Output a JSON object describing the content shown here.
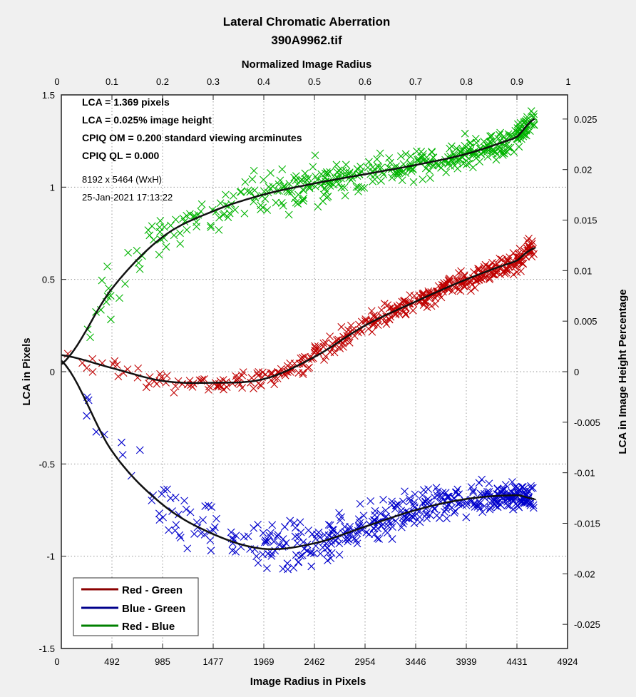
{
  "chart_data": {
    "type": "scatter",
    "title": "Lateral Chromatic Aberration",
    "subtitle": "390A9962.tif",
    "xlabel": "Image Radius in Pixels",
    "ylabel": "LCA in Pixels",
    "top_xlabel": "Normalized Image Radius",
    "right_ylabel": "LCA in Image Height Percentage",
    "xlim": [
      0,
      4924
    ],
    "ylim": [
      -1.5,
      1.5
    ],
    "x_ticks": [
      "0",
      "492",
      "985",
      "1477",
      "1969",
      "2462",
      "2954",
      "3446",
      "3939",
      "4431",
      "4924"
    ],
    "y_ticks": [
      "-1.5",
      "-1",
      "-0.5",
      "0",
      "0.5",
      "1",
      "1.5"
    ],
    "top_ticks": [
      "0",
      "0.1",
      "0.2",
      "0.3",
      "0.4",
      "0.5",
      "0.6",
      "0.7",
      "0.8",
      "0.9",
      "1"
    ],
    "right_ticks": [
      "-0.025",
      "-0.02",
      "-0.015",
      "-0.01",
      "-0.005",
      "0",
      "0.005",
      "0.01",
      "0.015",
      "0.02",
      "0.025"
    ],
    "right_scale_per_pixel_lca": 0.01826,
    "grid": true,
    "legend_position": "bottom-left",
    "annotations": {
      "bold": [
        "LCA = 1.369 pixels",
        "LCA = 0.025% image height",
        "CPIQ OM = 0.200 standard viewing arcminutes",
        "CPIQ QL = 0.000"
      ],
      "normal": [
        "8192 x 5464 (WxH)",
        "25-Jan-2021 17:13:22"
      ]
    },
    "fit_x": [
      0,
      492,
      985,
      1477,
      1969,
      2462,
      2954,
      3446,
      3939,
      4431,
      4600
    ],
    "series": [
      {
        "name": "Red - Green",
        "legend_color": "#8b0000",
        "marker_color": "#c00000",
        "noise": [
          0.04,
          0.05
        ],
        "fit": [
          0.09,
          0.02,
          -0.05,
          -0.06,
          -0.04,
          0.08,
          0.25,
          0.38,
          0.5,
          0.6,
          0.67
        ]
      },
      {
        "name": "Blue - Green",
        "legend_color": "#00008b",
        "marker_color": "#0000cc",
        "noise": [
          0.14,
          0.06
        ],
        "fit": [
          0.06,
          -0.43,
          -0.72,
          -0.88,
          -0.96,
          -0.93,
          -0.84,
          -0.75,
          -0.69,
          -0.67,
          -0.69
        ]
      },
      {
        "name": "Red - Blue",
        "legend_color": "#008000",
        "marker_color": "#00b400",
        "noise": [
          0.12,
          0.06
        ],
        "fit": [
          0.04,
          0.45,
          0.73,
          0.87,
          0.96,
          1.02,
          1.07,
          1.12,
          1.18,
          1.27,
          1.37
        ]
      }
    ]
  }
}
